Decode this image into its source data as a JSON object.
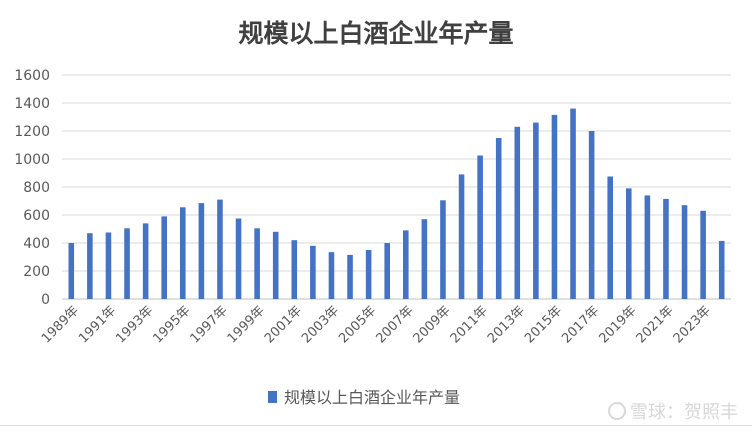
{
  "chart_data": {
    "type": "bar",
    "title": "规模以上白酒企业年产量",
    "xlabel": "",
    "ylabel": "",
    "ylim": [
      0,
      1600
    ],
    "yticks": [
      0,
      200,
      400,
      600,
      800,
      1000,
      1200,
      1400,
      1600
    ],
    "grid": true,
    "legend_position": "bottom",
    "bar_color": "#4472C4",
    "categories": [
      "1989年",
      "1990年",
      "1991年",
      "1992年",
      "1993年",
      "1994年",
      "1995年",
      "1996年",
      "1997年",
      "1998年",
      "1999年",
      "2000年",
      "2001年",
      "2002年",
      "2003年",
      "2004年",
      "2005年",
      "2006年",
      "2007年",
      "2008年",
      "2009年",
      "2010年",
      "2011年",
      "2012年",
      "2013年",
      "2014年",
      "2015年",
      "2016年",
      "2017年",
      "2018年",
      "2019年",
      "2020年",
      "2021年",
      "2022年",
      "2023年",
      "2024年"
    ],
    "xtick_labels": [
      "1989年",
      "1991年",
      "1993年",
      "1995年",
      "1997年",
      "1999年",
      "2001年",
      "2003年",
      "2005年",
      "2007年",
      "2009年",
      "2011年",
      "2013年",
      "2015年",
      "2017年",
      "2019年",
      "2021年",
      "2023年"
    ],
    "series": [
      {
        "name": "规模以上白酒企业年产量",
        "values": [
          400,
          470,
          475,
          505,
          540,
          590,
          655,
          685,
          710,
          575,
          505,
          480,
          420,
          380,
          335,
          315,
          350,
          400,
          490,
          570,
          705,
          890,
          1025,
          1150,
          1230,
          1260,
          1315,
          1360,
          1200,
          875,
          790,
          740,
          715,
          670,
          630,
          415
        ]
      }
    ]
  },
  "watermark": {
    "text": "雪球：贺照丰"
  }
}
